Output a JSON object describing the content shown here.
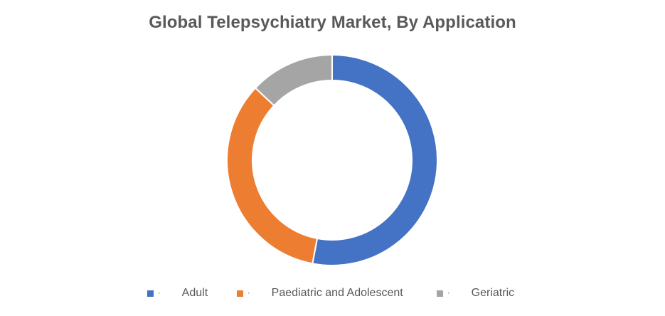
{
  "chart_data": {
    "type": "pie",
    "variant": "donut",
    "title": "Global Telepsychiatry Market, By Application",
    "categories": [
      "Adult",
      "Paediatric and Adolescent",
      "Geriatric"
    ],
    "values": [
      53,
      34,
      13
    ],
    "unit": "%",
    "colors": [
      "#4472C4",
      "#ED7D31",
      "#A5A5A5"
    ],
    "legend_position": "bottom",
    "legend_marker": "·"
  }
}
